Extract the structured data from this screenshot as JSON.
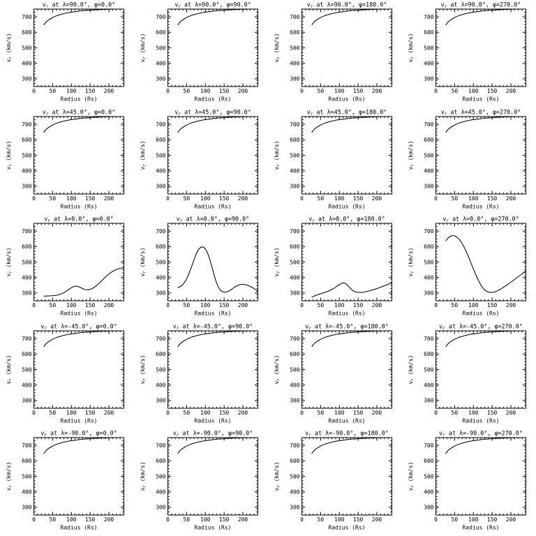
{
  "page": {
    "background_color": "#ffffff",
    "line_color": "#000000",
    "description": "Grid of 20 radial velocity profiles of the solar wind at different latitudes and longitudes"
  },
  "chart_data": {
    "type": "line",
    "layout": {
      "rows": 5,
      "cols": 4
    },
    "title": "",
    "xlabel": "Radius (Rs)",
    "ylabel": "v_r (km/s)",
    "xlim": [
      0,
      240
    ],
    "ylim": [
      250,
      750
    ],
    "xticks": [
      0,
      50,
      100,
      150,
      200
    ],
    "yticks": [
      300,
      400,
      500,
      600,
      700
    ],
    "x_minor_step": 10,
    "y_minor_step": 20,
    "grid": false,
    "legend": "none",
    "series_library": {
      "fast": {
        "x": [
          27,
          30,
          33,
          36,
          40,
          44,
          48,
          53,
          58,
          64,
          70,
          77,
          84,
          92,
          100,
          109,
          118,
          128,
          139,
          150,
          162,
          175,
          188,
          202,
          217,
          232,
          240
        ],
        "y": [
          648,
          659,
          667,
          674,
          681,
          687,
          693,
          699,
          704,
          710,
          714,
          719,
          723,
          727,
          730,
          733,
          736,
          739,
          741,
          743,
          745,
          747,
          748,
          749,
          750,
          750,
          750
        ]
      },
      "eq_phi0": {
        "x": [
          27,
          35,
          45,
          55,
          65,
          75,
          85,
          95,
          103,
          110,
          117,
          124,
          131,
          138,
          145,
          152,
          160,
          168,
          177,
          186,
          195,
          204,
          213,
          222,
          231,
          240
        ],
        "y": [
          280,
          281,
          282,
          284,
          288,
          296,
          310,
          327,
          339,
          345,
          343,
          336,
          328,
          322,
          321,
          325,
          335,
          350,
          370,
          392,
          413,
          430,
          444,
          454,
          460,
          462
        ]
      },
      "eq_phi90": {
        "x": [
          27,
          34,
          41,
          48,
          55,
          62,
          69,
          76,
          82,
          88,
          93,
          98,
          103,
          108,
          113,
          118,
          123,
          128,
          134,
          140,
          147,
          154,
          162,
          170,
          178,
          186,
          195,
          204,
          213,
          222,
          231,
          240
        ],
        "y": [
          335,
          343,
          357,
          382,
          418,
          462,
          510,
          555,
          583,
          596,
          598,
          591,
          573,
          545,
          508,
          465,
          420,
          378,
          342,
          318,
          307,
          306,
          312,
          324,
          338,
          350,
          356,
          356,
          350,
          340,
          327,
          314
        ]
      },
      "eq_phi180": {
        "x": [
          27,
          36,
          46,
          56,
          66,
          76,
          86,
          95,
          103,
          110,
          116,
          122,
          128,
          134,
          141,
          148,
          156,
          165,
          174,
          184,
          194,
          204,
          214,
          224,
          234,
          240
        ],
        "y": [
          274,
          284,
          293,
          300,
          308,
          318,
          331,
          347,
          359,
          366,
          363,
          350,
          334,
          319,
          309,
          305,
          304,
          306,
          311,
          317,
          324,
          332,
          341,
          351,
          361,
          367
        ]
      },
      "eq_phi270": {
        "x": [
          27,
          33,
          39,
          45,
          51,
          57,
          63,
          69,
          75,
          81,
          87,
          93,
          99,
          105,
          111,
          117,
          123,
          129,
          136,
          143,
          151,
          159,
          168,
          177,
          187,
          197,
          207,
          217,
          227,
          237,
          240
        ],
        "y": [
          638,
          656,
          667,
          671,
          669,
          660,
          645,
          624,
          598,
          568,
          534,
          498,
          462,
          427,
          394,
          365,
          341,
          323,
          310,
          304,
          304,
          309,
          319,
          332,
          348,
          365,
          383,
          401,
          419,
          438,
          444
        ]
      }
    },
    "plots": [
      {
        "title": "v_r at λ=90.0°, φ=0.0°",
        "lambda": "90.0",
        "phi": "0.0",
        "series": "fast"
      },
      {
        "title": "v_r at λ=90.0°, φ=90.0°",
        "lambda": "90.0",
        "phi": "90.0",
        "series": "fast"
      },
      {
        "title": "v_r at λ=90.0°, φ=180.0°",
        "lambda": "90.0",
        "phi": "180.0",
        "series": "fast"
      },
      {
        "title": "v_r at λ=90.0°, φ=270.0°",
        "lambda": "90.0",
        "phi": "270.0",
        "series": "fast"
      },
      {
        "title": "v_r at λ=45.0°, φ=0.0°",
        "lambda": "45.0",
        "phi": "0.0",
        "series": "fast"
      },
      {
        "title": "v_r at λ=45.0°, φ=90.0°",
        "lambda": "45.0",
        "phi": "90.0",
        "series": "fast"
      },
      {
        "title": "v_r at λ=45.0°, φ=180.0°",
        "lambda": "45.0",
        "phi": "180.0",
        "series": "fast"
      },
      {
        "title": "v_r at λ=45.0°, φ=270.0°",
        "lambda": "45.0",
        "phi": "270.0",
        "series": "fast"
      },
      {
        "title": "v_r at λ=0.0°, φ=0.0°",
        "lambda": "0.0",
        "phi": "0.0",
        "series": "eq_phi0"
      },
      {
        "title": "v_r at λ=0.0°, φ=90.0°",
        "lambda": "0.0",
        "phi": "90.0",
        "series": "eq_phi90"
      },
      {
        "title": "v_r at λ=0.0°, φ=180.0°",
        "lambda": "0.0",
        "phi": "180.0",
        "series": "eq_phi180"
      },
      {
        "title": "v_r at λ=0.0°, φ=270.0°",
        "lambda": "0.0",
        "phi": "270.0",
        "series": "eq_phi270"
      },
      {
        "title": "v_r at λ=-45.0°, φ=0.0°",
        "lambda": "-45.0",
        "phi": "0.0",
        "series": "fast"
      },
      {
        "title": "v_r at λ=-45.0°, φ=90.0°",
        "lambda": "-45.0",
        "phi": "90.0",
        "series": "fast"
      },
      {
        "title": "v_r at λ=-45.0°, φ=180.0°",
        "lambda": "-45.0",
        "phi": "180.0",
        "series": "fast"
      },
      {
        "title": "v_r at λ=-45.0°, φ=270.0°",
        "lambda": "-45.0",
        "phi": "270.0",
        "series": "fast"
      },
      {
        "title": "v_r at λ=-90.0°, φ=0.0°",
        "lambda": "-90.0",
        "phi": "0.0",
        "series": "fast"
      },
      {
        "title": "v_r at λ=-90.0°, φ=90.0°",
        "lambda": "-90.0",
        "phi": "90.0",
        "series": "fast"
      },
      {
        "title": "v_r at λ=-90.0°, φ=180.0°",
        "lambda": "-90.0",
        "phi": "180.0",
        "series": "fast"
      },
      {
        "title": "v_r at λ=-90.0°, φ=270.0°",
        "lambda": "-90.0",
        "phi": "270.0",
        "series": "fast"
      }
    ]
  }
}
